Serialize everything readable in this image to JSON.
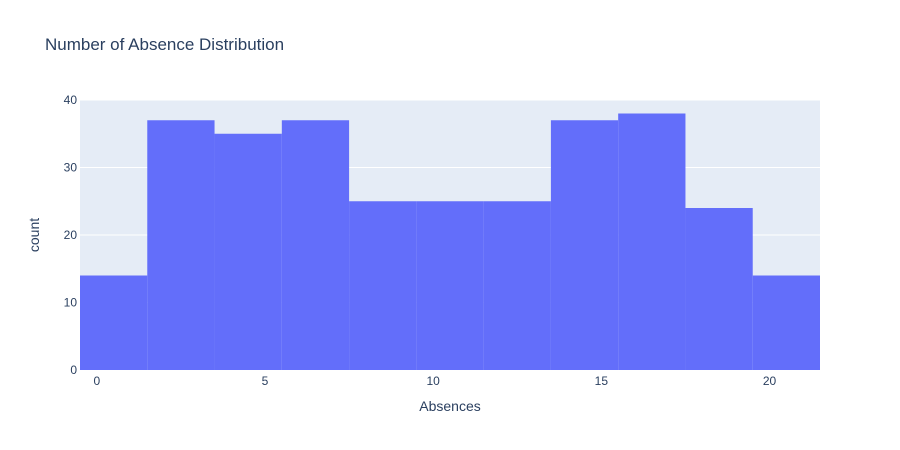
{
  "chart_data": {
    "type": "bar",
    "title": "Number of Absence Distribution",
    "xlabel": "Absences",
    "ylabel": "count",
    "bins": [
      {
        "start": -0.5,
        "end": 1.5,
        "count": 14
      },
      {
        "start": 1.5,
        "end": 3.5,
        "count": 37
      },
      {
        "start": 3.5,
        "end": 5.5,
        "count": 35
      },
      {
        "start": 5.5,
        "end": 7.5,
        "count": 37
      },
      {
        "start": 7.5,
        "end": 9.5,
        "count": 25
      },
      {
        "start": 9.5,
        "end": 11.5,
        "count": 25
      },
      {
        "start": 11.5,
        "end": 13.5,
        "count": 25
      },
      {
        "start": 13.5,
        "end": 15.5,
        "count": 37
      },
      {
        "start": 15.5,
        "end": 17.5,
        "count": 38
      },
      {
        "start": 17.5,
        "end": 19.5,
        "count": 24
      },
      {
        "start": 19.5,
        "end": 21.5,
        "count": 14
      }
    ],
    "xlim": [
      -0.5,
      21.5
    ],
    "ylim": [
      0,
      40
    ],
    "xticks": [
      0,
      5,
      10,
      15,
      20
    ],
    "yticks": [
      0,
      10,
      20,
      30,
      40
    ],
    "grid": true,
    "colors": {
      "bar": "#636efa",
      "plot_bg": "#e5ecf6",
      "grid": "#ffffff",
      "text": "#2a3f5f"
    }
  }
}
